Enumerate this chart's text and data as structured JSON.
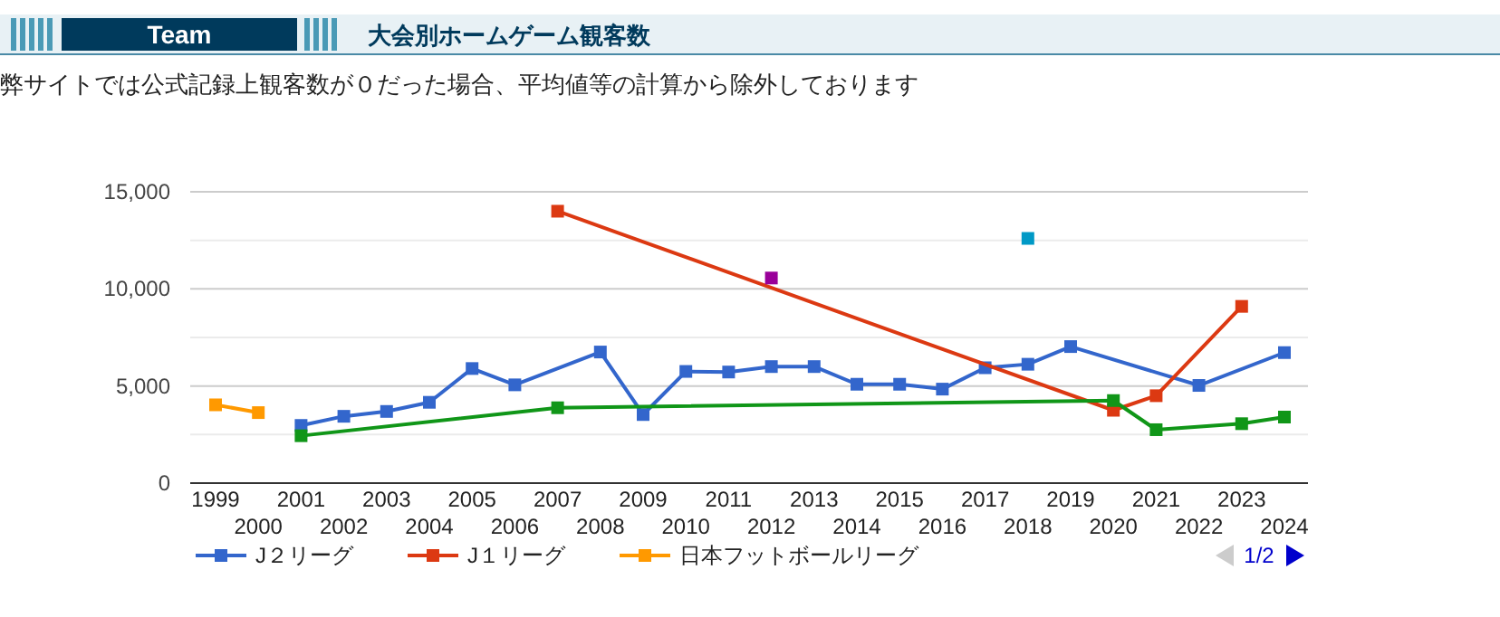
{
  "chart_data": {
    "type": "line",
    "title": "大会別ホームゲーム観客数",
    "subtitle": "弊サイトでは公式記録上観客数が０だった場合、平均値等の計算から除外しております",
    "annotations": [
      "Team",
      "1/2"
    ],
    "categories": [
      "1999",
      "2000",
      "2001",
      "2002",
      "2003",
      "2004",
      "2005",
      "2006",
      "2007",
      "2008",
      "2009",
      "2010",
      "2011",
      "2012",
      "2013",
      "2014",
      "2015",
      "2016",
      "2017",
      "2018",
      "2019",
      "2020",
      "2021",
      "2022",
      "2023",
      "2024"
    ],
    "series": [
      {
        "name": "J２リーグ",
        "color": "#3366cc",
        "values": [
          null,
          null,
          2970,
          3440,
          3690,
          4160,
          5900,
          5060,
          null,
          6750,
          3530,
          5750,
          5720,
          6000,
          6000,
          5090,
          5090,
          4840,
          5940,
          6120,
          7030,
          null,
          null,
          5030,
          null,
          6720
        ]
      },
      {
        "name": "J１リーグ",
        "color": "#dc3912",
        "values": [
          null,
          null,
          null,
          null,
          null,
          null,
          null,
          null,
          14000,
          null,
          null,
          null,
          null,
          null,
          null,
          null,
          null,
          null,
          null,
          null,
          null,
          3750,
          4500,
          null,
          9100,
          null
        ]
      },
      {
        "name": "日本フットボールリーグ",
        "color": "#ff9900",
        "values": [
          4030,
          3630,
          null,
          null,
          null,
          null,
          null,
          null,
          null,
          null,
          null,
          null,
          null,
          null,
          null,
          null,
          null,
          null,
          null,
          null,
          null,
          null,
          null,
          null,
          null,
          null
        ]
      },
      {
        "color": "#109618",
        "values": [
          null,
          null,
          2440,
          null,
          null,
          null,
          null,
          null,
          3880,
          null,
          null,
          null,
          null,
          null,
          null,
          null,
          null,
          null,
          null,
          null,
          null,
          4250,
          2750,
          null,
          3060,
          3400
        ]
      },
      {
        "color": "#990099",
        "values": [
          null,
          null,
          null,
          null,
          null,
          null,
          null,
          null,
          null,
          null,
          null,
          null,
          null,
          10560,
          null,
          null,
          null,
          null,
          null,
          null,
          null,
          null,
          null,
          null,
          null,
          null
        ]
      },
      {
        "color": "#0099c6",
        "values": [
          null,
          null,
          null,
          null,
          null,
          null,
          null,
          null,
          null,
          null,
          null,
          null,
          null,
          null,
          null,
          null,
          null,
          null,
          null,
          12600,
          null,
          null,
          null,
          null,
          null,
          null
        ]
      }
    ],
    "ylim": [
      0,
      15000
    ],
    "yticks": [
      0,
      {
        "value": 2500,
        "label": null
      },
      {
        "value": 5000,
        "label": "5,000"
      },
      {
        "value": 7500,
        "label": null
      },
      {
        "value": 10000,
        "label": "10,000"
      },
      {
        "value": 12500,
        "label": null
      },
      {
        "value": 15000,
        "label": "15,000"
      }
    ],
    "grid": "y",
    "legend": "bottom",
    "marker": "square",
    "line_style": "solid"
  }
}
